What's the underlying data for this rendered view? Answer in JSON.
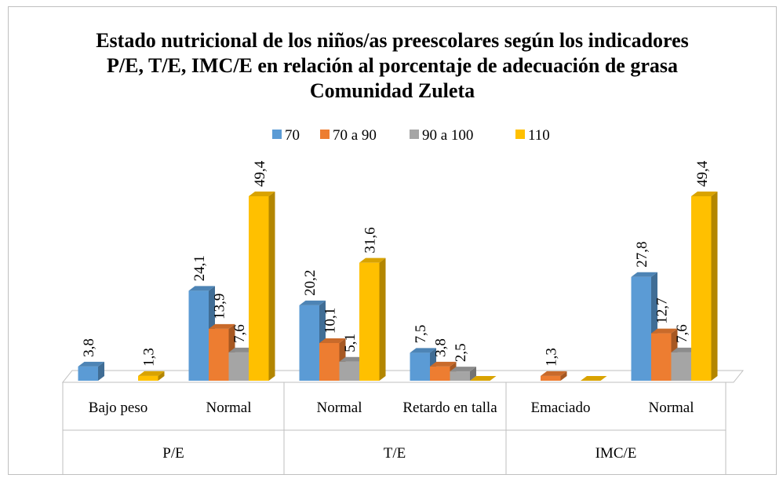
{
  "chart_data": {
    "type": "bar3d",
    "title": "Estado nutricional de los niños/as preescolares según los indicadores P/E, T/E, IMC/E en relación al porcentaje de adecuación de grasa Comunidad Zuleta",
    "groups": [
      {
        "name": "P/E",
        "categories": [
          "Bajo peso",
          "Normal"
        ]
      },
      {
        "name": "T/E",
        "categories": [
          "Normal",
          "Retardo en talla"
        ]
      },
      {
        "name": "IMC/E",
        "categories": [
          "Emaciado",
          "Normal"
        ]
      }
    ],
    "series": [
      {
        "name": "70",
        "color": "#5b9bd5",
        "values": [
          3.8,
          24.1,
          20.2,
          7.5,
          null,
          27.8
        ],
        "value_labels": [
          "3,8",
          "24,1",
          "20,2",
          "7,5",
          null,
          "27,8"
        ]
      },
      {
        "name": "70 a 90",
        "color": "#ed7d31",
        "values": [
          null,
          13.9,
          10.1,
          3.8,
          1.3,
          12.7
        ],
        "value_labels": [
          null,
          "13,9",
          "10,1",
          "3,8",
          "1,3",
          "12,7"
        ]
      },
      {
        "name": "90 a 100",
        "color": "#a5a5a5",
        "values": [
          null,
          7.6,
          5.1,
          2.5,
          null,
          7.6
        ],
        "value_labels": [
          null,
          "7,6",
          "5,1",
          "2,5",
          null,
          "7,6"
        ]
      },
      {
        "name": "110",
        "color": "#ffc000",
        "values": [
          1.3,
          49.4,
          31.6,
          0,
          0,
          49.4
        ],
        "value_labels": [
          "1,3",
          "49,4",
          "31,6",
          null,
          null,
          "49,4"
        ]
      }
    ],
    "legend": "top"
  }
}
